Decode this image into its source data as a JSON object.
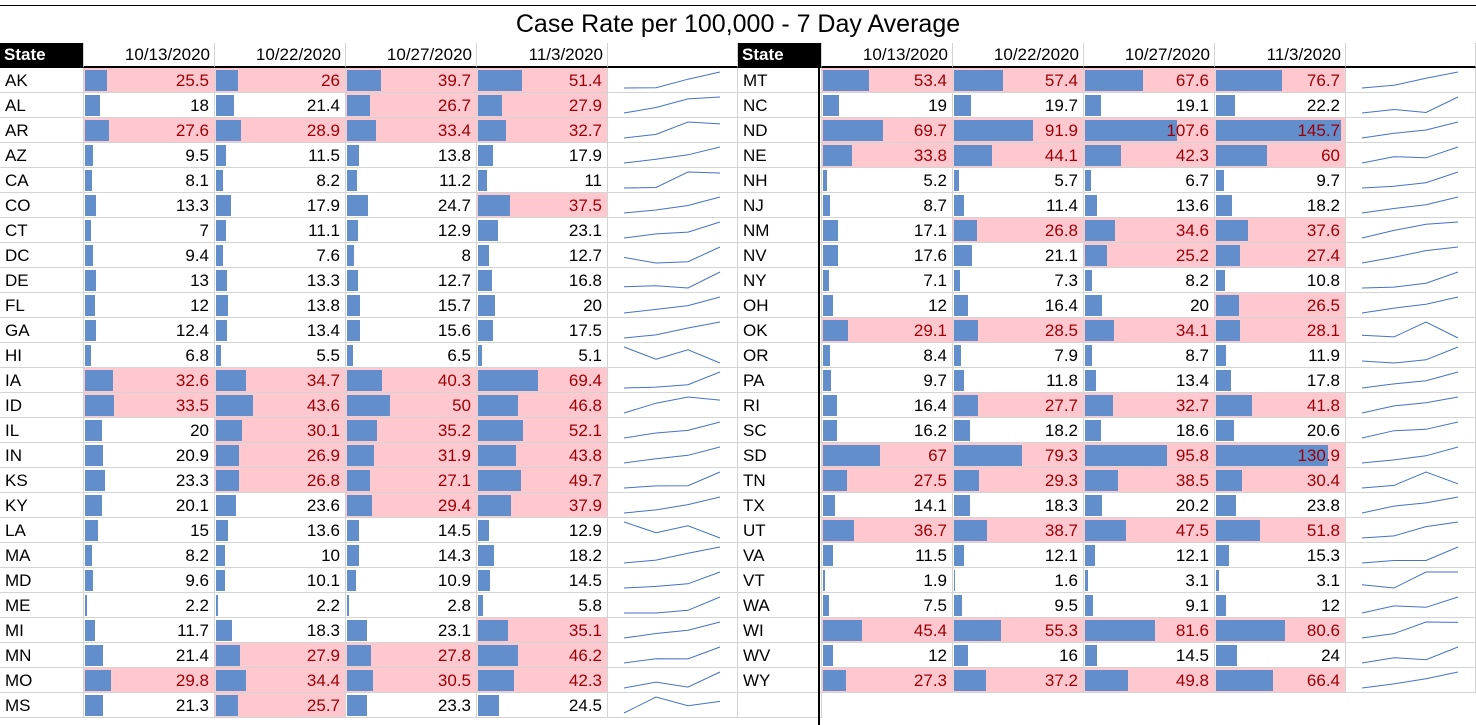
{
  "title": "Case Rate per 100,000 - 7 Day Average",
  "colors": {
    "bar": "#628fcb",
    "highlight_fill": "#ffc7ce",
    "highlight_text": "#9c0006",
    "sparkline": "#4472c4"
  },
  "chart_data": {
    "type": "table",
    "title": "Case Rate per 100,000 - 7 Day Average",
    "columns": [
      "State",
      "10/13/2020",
      "10/22/2020",
      "10/27/2020",
      "11/3/2020"
    ],
    "bar_max": 145.7,
    "highlight_threshold": 25,
    "left": [
      {
        "state": "AK",
        "values": [
          25.5,
          26,
          39.7,
          51.4
        ]
      },
      {
        "state": "AL",
        "values": [
          18,
          21.4,
          26.7,
          27.9
        ]
      },
      {
        "state": "AR",
        "values": [
          27.6,
          28.9,
          33.4,
          32.7
        ]
      },
      {
        "state": "AZ",
        "values": [
          9.5,
          11.5,
          13.8,
          17.9
        ]
      },
      {
        "state": "CA",
        "values": [
          8.1,
          8.2,
          11.2,
          11
        ]
      },
      {
        "state": "CO",
        "values": [
          13.3,
          17.9,
          24.7,
          37.5
        ]
      },
      {
        "state": "CT",
        "values": [
          7,
          11.1,
          12.9,
          23.1
        ]
      },
      {
        "state": "DC",
        "values": [
          9.4,
          7.6,
          8,
          12.7
        ]
      },
      {
        "state": "DE",
        "values": [
          13,
          13.3,
          12.7,
          16.8
        ]
      },
      {
        "state": "FL",
        "values": [
          12,
          13.8,
          15.7,
          20
        ]
      },
      {
        "state": "GA",
        "values": [
          12.4,
          13.4,
          15.6,
          17.5
        ]
      },
      {
        "state": "HI",
        "values": [
          6.8,
          5.5,
          6.5,
          5.1
        ]
      },
      {
        "state": "IA",
        "values": [
          32.6,
          34.7,
          40.3,
          69.4
        ]
      },
      {
        "state": "ID",
        "values": [
          33.5,
          43.6,
          50,
          46.8
        ]
      },
      {
        "state": "IL",
        "values": [
          20,
          30.1,
          35.2,
          52.1
        ]
      },
      {
        "state": "IN",
        "values": [
          20.9,
          26.9,
          31.9,
          43.8
        ]
      },
      {
        "state": "KS",
        "values": [
          23.3,
          26.8,
          27.1,
          49.7
        ]
      },
      {
        "state": "KY",
        "values": [
          20.1,
          23.6,
          29.4,
          37.9
        ]
      },
      {
        "state": "LA",
        "values": [
          15,
          13.6,
          14.5,
          12.9
        ]
      },
      {
        "state": "MA",
        "values": [
          8.2,
          10,
          14.3,
          18.2
        ]
      },
      {
        "state": "MD",
        "values": [
          9.6,
          10.1,
          10.9,
          14.5
        ]
      },
      {
        "state": "ME",
        "values": [
          2.2,
          2.2,
          2.8,
          5.8
        ]
      },
      {
        "state": "MI",
        "values": [
          11.7,
          18.3,
          23.1,
          35.1
        ]
      },
      {
        "state": "MN",
        "values": [
          21.4,
          27.9,
          27.8,
          46.2
        ]
      },
      {
        "state": "MO",
        "values": [
          29.8,
          34.4,
          30.5,
          42.3
        ]
      },
      {
        "state": "MS",
        "values": [
          21.3,
          25.7,
          23.3,
          24.5
        ]
      }
    ],
    "right": [
      {
        "state": "MT",
        "values": [
          53.4,
          57.4,
          67.6,
          76.7
        ]
      },
      {
        "state": "NC",
        "values": [
          19,
          19.7,
          19.1,
          22.2
        ]
      },
      {
        "state": "ND",
        "values": [
          69.7,
          91.9,
          107.6,
          145.7
        ]
      },
      {
        "state": "NE",
        "values": [
          33.8,
          44.1,
          42.3,
          60
        ]
      },
      {
        "state": "NH",
        "values": [
          5.2,
          5.7,
          6.7,
          9.7
        ]
      },
      {
        "state": "NJ",
        "values": [
          8.7,
          11.4,
          13.6,
          18.2
        ]
      },
      {
        "state": "NM",
        "values": [
          17.1,
          26.8,
          34.6,
          37.6
        ]
      },
      {
        "state": "NV",
        "values": [
          17.6,
          21.1,
          25.2,
          27.4
        ]
      },
      {
        "state": "NY",
        "values": [
          7.1,
          7.3,
          8.2,
          10.8
        ]
      },
      {
        "state": "OH",
        "values": [
          12,
          16.4,
          20,
          26.5
        ]
      },
      {
        "state": "OK",
        "values": [
          29.1,
          28.5,
          34.1,
          28.1
        ]
      },
      {
        "state": "OR",
        "values": [
          8.4,
          7.9,
          8.7,
          11.9
        ]
      },
      {
        "state": "PA",
        "values": [
          9.7,
          11.8,
          13.4,
          17.8
        ]
      },
      {
        "state": "RI",
        "values": [
          16.4,
          27.7,
          32.7,
          41.8
        ]
      },
      {
        "state": "SC",
        "values": [
          16.2,
          18.2,
          18.6,
          20.6
        ]
      },
      {
        "state": "SD",
        "values": [
          67,
          79.3,
          95.8,
          130.9
        ]
      },
      {
        "state": "TN",
        "values": [
          27.5,
          29.3,
          38.5,
          30.4
        ]
      },
      {
        "state": "TX",
        "values": [
          14.1,
          18.3,
          20.2,
          23.8
        ]
      },
      {
        "state": "UT",
        "values": [
          36.7,
          38.7,
          47.5,
          51.8
        ]
      },
      {
        "state": "VA",
        "values": [
          11.5,
          12.1,
          12.1,
          15.3
        ]
      },
      {
        "state": "VT",
        "values": [
          1.9,
          1.6,
          3.1,
          3.1
        ]
      },
      {
        "state": "WA",
        "values": [
          7.5,
          9.5,
          9.1,
          12
        ]
      },
      {
        "state": "WI",
        "values": [
          45.4,
          55.3,
          81.6,
          80.6
        ]
      },
      {
        "state": "WV",
        "values": [
          12,
          16,
          14.5,
          24
        ]
      },
      {
        "state": "WY",
        "values": [
          27.3,
          37.2,
          49.8,
          66.4
        ]
      }
    ]
  }
}
